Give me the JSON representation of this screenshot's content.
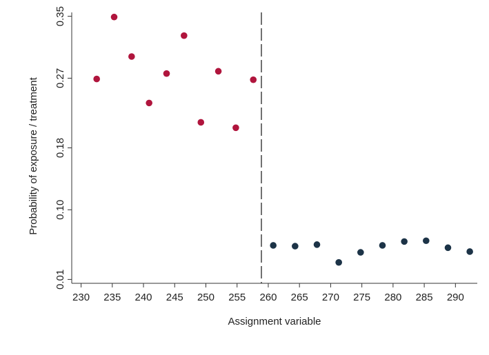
{
  "chart_data": {
    "type": "scatter",
    "title": "",
    "xlabel": "Assignment variable",
    "ylabel": "Probability of exposure / treatment",
    "xlim": [
      228.5,
      293.5
    ],
    "ylim": [
      0.005,
      0.355
    ],
    "xticks": [
      "230",
      "235",
      "240",
      "245",
      "250",
      "255",
      "260",
      "265",
      "270",
      "275",
      "280",
      "285",
      "290"
    ],
    "xtick_values": [
      230,
      235,
      240,
      245,
      250,
      255,
      260,
      265,
      270,
      275,
      280,
      285,
      290
    ],
    "yticks": [
      "0.01",
      "0.10",
      "0.18",
      "0.27",
      "0.35"
    ],
    "ytick_values": [
      0.01,
      0.1,
      0.18,
      0.27,
      0.35
    ],
    "cutoff": 258.9,
    "grid": false,
    "series": [
      {
        "color": "#b0153d",
        "points": [
          {
            "x": 232.5,
            "y": 0.269
          },
          {
            "x": 235.3,
            "y": 0.349
          },
          {
            "x": 238.1,
            "y": 0.298
          },
          {
            "x": 240.9,
            "y": 0.238
          },
          {
            "x": 243.7,
            "y": 0.276
          },
          {
            "x": 246.5,
            "y": 0.325
          },
          {
            "x": 249.2,
            "y": 0.213
          },
          {
            "x": 252.0,
            "y": 0.279
          },
          {
            "x": 254.8,
            "y": 0.206
          },
          {
            "x": 257.6,
            "y": 0.268
          }
        ]
      },
      {
        "color": "#1c3347",
        "points": [
          {
            "x": 260.8,
            "y": 0.054
          },
          {
            "x": 264.3,
            "y": 0.053
          },
          {
            "x": 267.8,
            "y": 0.055
          },
          {
            "x": 271.3,
            "y": 0.032
          },
          {
            "x": 274.8,
            "y": 0.045
          },
          {
            "x": 278.3,
            "y": 0.054
          },
          {
            "x": 281.8,
            "y": 0.059
          },
          {
            "x": 285.3,
            "y": 0.06
          },
          {
            "x": 288.8,
            "y": 0.051
          },
          {
            "x": 292.3,
            "y": 0.046
          }
        ]
      }
    ]
  }
}
